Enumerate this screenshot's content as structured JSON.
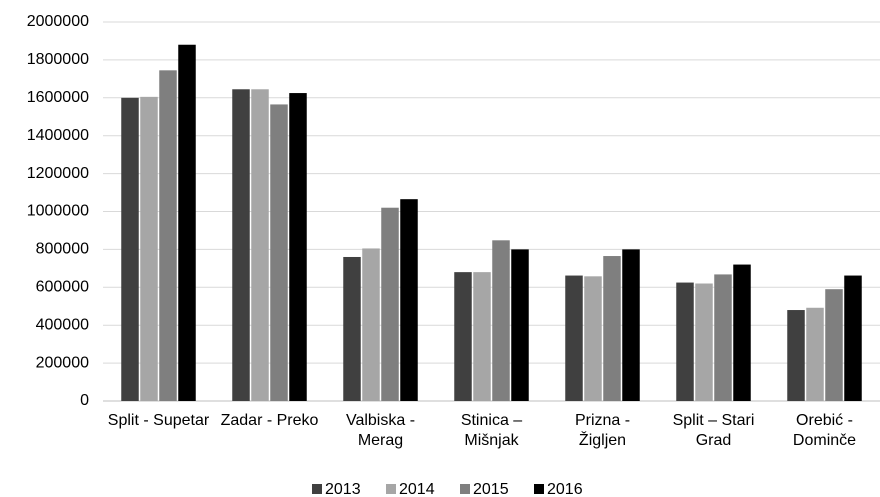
{
  "chart_data": {
    "type": "bar",
    "categories": [
      "Split - Supetar",
      "Zadar - Preko",
      "Valbiska - Merag",
      "Stinica – Mišnjak",
      "Prizna - Žigljen",
      "Split – Stari Grad",
      "Orebić - Dominče"
    ],
    "series": [
      {
        "name": "2013",
        "color": "#404040",
        "values": [
          1600000,
          1645000,
          760000,
          680000,
          662000,
          625000,
          480000
        ]
      },
      {
        "name": "2014",
        "color": "#a6a6a6",
        "values": [
          1605000,
          1645000,
          805000,
          680000,
          658000,
          620000,
          492000
        ]
      },
      {
        "name": "2015",
        "color": "#7f7f7f",
        "values": [
          1745000,
          1565000,
          1020000,
          848000,
          765000,
          668000,
          590000
        ]
      },
      {
        "name": "2016",
        "color": "#000000",
        "values": [
          1880000,
          1625000,
          1065000,
          800000,
          800000,
          720000,
          662000
        ]
      }
    ],
    "ylim": [
      0,
      2000000
    ],
    "yticks": [
      0,
      200000,
      400000,
      600000,
      800000,
      1000000,
      1200000,
      1400000,
      1600000,
      1800000,
      2000000
    ],
    "grid": true,
    "legend": "bottom"
  }
}
